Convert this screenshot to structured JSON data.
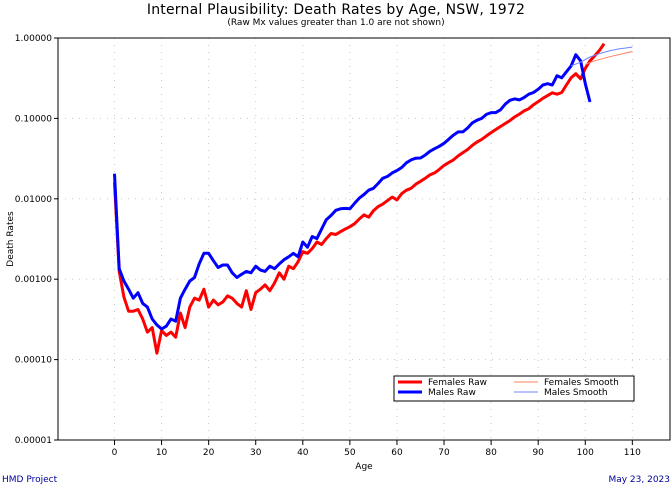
{
  "chart_data": {
    "type": "line",
    "title": "Internal Plausibility: Death Rates by Age, NSW, 1972",
    "subtitle": "(Raw Mx values greater than 1.0 are not shown)",
    "xlabel": "Age",
    "ylabel": "Death Rates",
    "xlim": [
      -12,
      118
    ],
    "ylim": [
      1e-05,
      1.0
    ],
    "yscale": "log",
    "xticks": [
      0,
      10,
      20,
      30,
      40,
      50,
      60,
      70,
      80,
      90,
      100,
      110
    ],
    "yticks": [
      {
        "value": 1.0,
        "label": "1.00000"
      },
      {
        "value": 0.1,
        "label": "0.10000"
      },
      {
        "value": 0.01,
        "label": "0.01000"
      },
      {
        "value": 0.001,
        "label": "0.00100"
      },
      {
        "value": 0.0001,
        "label": "0.00010"
      },
      {
        "value": 1e-05,
        "label": "0.00001"
      }
    ],
    "grid": true,
    "legend_position": "bottom-right",
    "series": [
      {
        "name": "Females Raw",
        "color": "#ff0000",
        "style": "thick",
        "x": [
          0,
          1,
          2,
          3,
          4,
          5,
          6,
          7,
          8,
          9,
          10,
          11,
          12,
          13,
          14,
          15,
          16,
          17,
          18,
          19,
          20,
          21,
          22,
          23,
          24,
          25,
          26,
          27,
          28,
          29,
          30,
          31,
          32,
          33,
          34,
          35,
          36,
          37,
          38,
          39,
          40,
          41,
          42,
          43,
          44,
          45,
          46,
          47,
          48,
          49,
          50,
          51,
          52,
          53,
          54,
          55,
          56,
          57,
          58,
          59,
          60,
          61,
          62,
          63,
          64,
          65,
          66,
          67,
          68,
          69,
          70,
          71,
          72,
          73,
          74,
          75,
          76,
          77,
          78,
          79,
          80,
          81,
          82,
          83,
          84,
          85,
          86,
          87,
          88,
          89,
          90,
          91,
          92,
          93,
          94,
          95,
          96,
          97,
          98,
          99,
          100,
          101,
          102,
          103,
          104
        ],
        "y": [
          0.0159,
          0.00125,
          0.0006,
          0.0004,
          0.0004,
          0.00042,
          0.00032,
          0.00022,
          0.00025,
          0.00012,
          0.00023,
          0.0002,
          0.00022,
          0.00019,
          0.00038,
          0.00025,
          0.00045,
          0.00058,
          0.00055,
          0.00075,
          0.00045,
          0.00055,
          0.00048,
          0.00052,
          0.00062,
          0.00058,
          0.0005,
          0.00045,
          0.00072,
          0.00042,
          0.00068,
          0.00075,
          0.00085,
          0.00072,
          0.0009,
          0.0012,
          0.001,
          0.00145,
          0.00135,
          0.00165,
          0.0022,
          0.0021,
          0.0024,
          0.0029,
          0.0027,
          0.0032,
          0.0037,
          0.0036,
          0.0039,
          0.0042,
          0.0045,
          0.0049,
          0.0056,
          0.0063,
          0.0059,
          0.0071,
          0.008,
          0.0086,
          0.0095,
          0.0105,
          0.0097,
          0.0116,
          0.0128,
          0.0135,
          0.0152,
          0.0165,
          0.018,
          0.0198,
          0.021,
          0.0232,
          0.026,
          0.0282,
          0.0305,
          0.0342,
          0.0375,
          0.041,
          0.0462,
          0.0508,
          0.0548,
          0.0605,
          0.0665,
          0.0728,
          0.0792,
          0.0865,
          0.094,
          0.104,
          0.113,
          0.124,
          0.132,
          0.148,
          0.162,
          0.178,
          0.192,
          0.208,
          0.2,
          0.21,
          0.26,
          0.32,
          0.36,
          0.31,
          0.42,
          0.52,
          0.6,
          0.7,
          0.85
        ]
      },
      {
        "name": "Males Raw",
        "color": "#0000ff",
        "style": "thick",
        "x": [
          0,
          1,
          2,
          3,
          4,
          5,
          6,
          7,
          8,
          9,
          10,
          11,
          12,
          13,
          14,
          15,
          16,
          17,
          18,
          19,
          20,
          21,
          22,
          23,
          24,
          25,
          26,
          27,
          28,
          29,
          30,
          31,
          32,
          33,
          34,
          35,
          36,
          37,
          38,
          39,
          40,
          41,
          42,
          43,
          44,
          45,
          46,
          47,
          48,
          49,
          50,
          51,
          52,
          53,
          54,
          55,
          56,
          57,
          58,
          59,
          60,
          61,
          62,
          63,
          64,
          65,
          66,
          67,
          68,
          69,
          70,
          71,
          72,
          73,
          74,
          75,
          76,
          77,
          78,
          79,
          80,
          81,
          82,
          83,
          84,
          85,
          86,
          87,
          88,
          89,
          90,
          91,
          92,
          93,
          94,
          95,
          96,
          97,
          98,
          99,
          100,
          101
        ],
        "y": [
          0.0205,
          0.00135,
          0.00095,
          0.00075,
          0.00058,
          0.00068,
          0.0005,
          0.00045,
          0.00032,
          0.00027,
          0.00024,
          0.00026,
          0.00032,
          0.0003,
          0.00058,
          0.00075,
          0.00095,
          0.00105,
          0.00155,
          0.0021,
          0.0021,
          0.0017,
          0.0014,
          0.0015,
          0.0015,
          0.0012,
          0.00105,
          0.00115,
          0.00125,
          0.0012,
          0.00145,
          0.0013,
          0.00125,
          0.00145,
          0.00135,
          0.00155,
          0.00175,
          0.0019,
          0.0021,
          0.0019,
          0.0029,
          0.0025,
          0.0034,
          0.0032,
          0.0042,
          0.0055,
          0.0062,
          0.0072,
          0.0075,
          0.0076,
          0.0075,
          0.0088,
          0.0102,
          0.0113,
          0.0128,
          0.0135,
          0.0155,
          0.018,
          0.019,
          0.021,
          0.0225,
          0.0245,
          0.028,
          0.0305,
          0.032,
          0.0322,
          0.035,
          0.039,
          0.042,
          0.045,
          0.049,
          0.055,
          0.062,
          0.068,
          0.068,
          0.076,
          0.088,
          0.095,
          0.1,
          0.112,
          0.118,
          0.118,
          0.128,
          0.15,
          0.168,
          0.175,
          0.17,
          0.182,
          0.2,
          0.21,
          0.23,
          0.26,
          0.27,
          0.26,
          0.34,
          0.32,
          0.38,
          0.45,
          0.62,
          0.52,
          0.27,
          0.16
        ]
      },
      {
        "name": "Females Smooth",
        "color": "#ff8060",
        "style": "thin",
        "x": [
          100,
          102,
          104,
          106,
          108,
          110
        ],
        "y": [
          0.47,
          0.52,
          0.56,
          0.6,
          0.64,
          0.68
        ]
      },
      {
        "name": "Males Smooth",
        "color": "#6f86ff",
        "style": "thin",
        "x": [
          97,
          99,
          101,
          103,
          105,
          107,
          110
        ],
        "y": [
          0.45,
          0.5,
          0.58,
          0.64,
          0.69,
          0.73,
          0.77
        ]
      }
    ]
  },
  "footer": {
    "left": "HMD Project",
    "right": "May 23, 2023"
  }
}
